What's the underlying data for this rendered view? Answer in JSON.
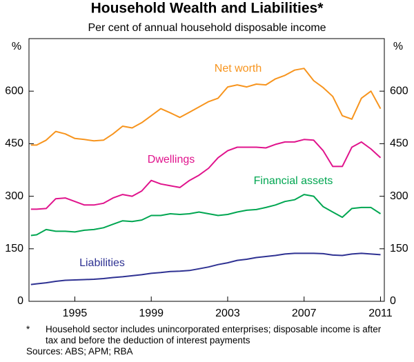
{
  "chart_data": {
    "type": "line",
    "title": "Household Wealth and Liabilities*",
    "subtitle": "Per cent of annual household disposable income",
    "ylabel": "%",
    "y2label": "%",
    "x": [
      1992.7,
      1993.0,
      1993.5,
      1994.0,
      1994.5,
      1995.0,
      1995.5,
      1996.0,
      1996.5,
      1997.0,
      1997.5,
      1998.0,
      1998.5,
      1999.0,
      1999.5,
      2000.0,
      2000.5,
      2001.0,
      2001.5,
      2002.0,
      2002.5,
      2003.0,
      2003.5,
      2004.0,
      2004.5,
      2005.0,
      2005.5,
      2006.0,
      2006.5,
      2007.0,
      2007.5,
      2008.0,
      2008.5,
      2009.0,
      2009.5,
      2010.0,
      2010.5,
      2011.0
    ],
    "xlim": [
      1992.6,
      2011.2
    ],
    "xticks": [
      1995,
      1999,
      2003,
      2007,
      2011
    ],
    "ylim": [
      0,
      750
    ],
    "yticks": [
      0,
      150,
      300,
      450,
      600
    ],
    "y2lim": [
      0,
      750
    ],
    "y2ticks": [
      0,
      150,
      300,
      450,
      600
    ],
    "grid": false,
    "series": [
      {
        "name": "Net worth",
        "color": "#f7941d",
        "values": [
          446,
          446,
          460,
          485,
          478,
          465,
          462,
          458,
          460,
          478,
          500,
          495,
          510,
          530,
          550,
          538,
          525,
          540,
          555,
          570,
          580,
          612,
          618,
          612,
          620,
          618,
          635,
          645,
          660,
          665,
          630,
          610,
          585,
          530,
          520,
          580,
          600,
          550
        ]
      },
      {
        "name": "Dwellings",
        "color": "#e0138c",
        "values": [
          263,
          263,
          265,
          293,
          295,
          285,
          275,
          275,
          280,
          295,
          305,
          300,
          315,
          345,
          335,
          330,
          325,
          345,
          360,
          380,
          410,
          430,
          440,
          440,
          440,
          438,
          448,
          455,
          455,
          462,
          460,
          430,
          385,
          385,
          440,
          455,
          435,
          410
        ]
      },
      {
        "name": "Financial assets",
        "color": "#00a651",
        "values": [
          188,
          190,
          205,
          200,
          200,
          198,
          203,
          205,
          210,
          220,
          230,
          228,
          232,
          245,
          245,
          250,
          248,
          250,
          255,
          250,
          245,
          248,
          255,
          260,
          262,
          268,
          275,
          285,
          290,
          305,
          300,
          270,
          255,
          240,
          265,
          268,
          268,
          250
        ]
      },
      {
        "name": "Liabilities",
        "color": "#2e3192",
        "values": [
          48,
          50,
          53,
          57,
          60,
          61,
          62,
          63,
          65,
          68,
          70,
          73,
          76,
          80,
          82,
          85,
          86,
          88,
          93,
          98,
          105,
          110,
          117,
          120,
          125,
          128,
          131,
          135,
          137,
          137,
          137,
          136,
          132,
          131,
          135,
          137,
          135,
          133
        ]
      }
    ],
    "footnote_mark": "*",
    "footnote": "Household sector includes unincorporated enterprises; disposable income is after tax and before the deduction of interest payments",
    "sources": "Sources:  ABS; APM; RBA"
  }
}
